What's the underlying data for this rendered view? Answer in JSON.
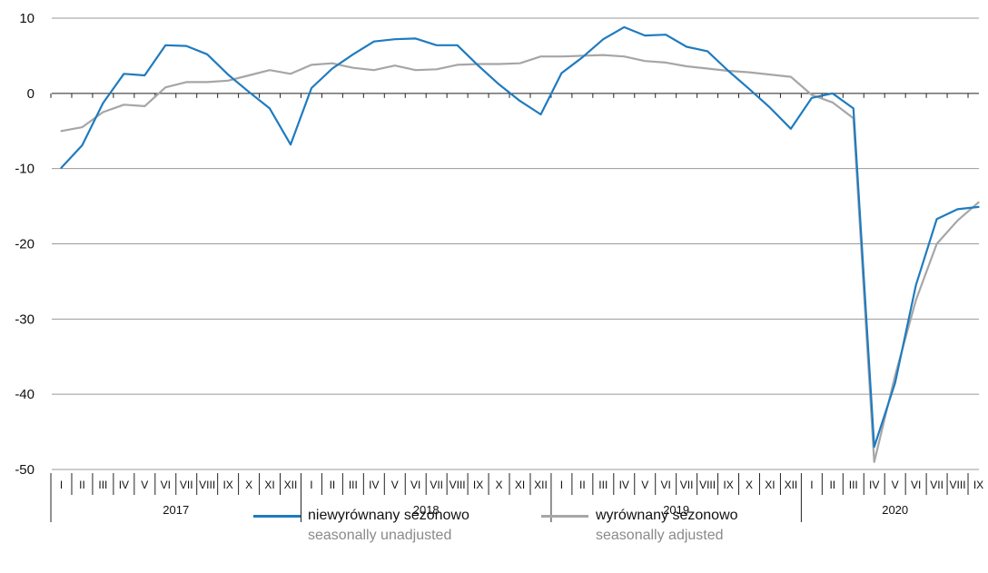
{
  "chart_data": {
    "type": "line",
    "ylim": [
      -50,
      10
    ],
    "yticks": [
      10,
      0,
      -10,
      -20,
      -30,
      -40,
      -50
    ],
    "grid": true,
    "months": [
      "I",
      "II",
      "III",
      "IV",
      "V",
      "VI",
      "VII",
      "VIII",
      "IX",
      "X",
      "XI",
      "XII"
    ],
    "years": [
      {
        "label": "2017",
        "months": 12
      },
      {
        "label": "2018",
        "months": 12
      },
      {
        "label": "2019",
        "months": 12
      },
      {
        "label": "2020",
        "months": 9
      }
    ],
    "series": [
      {
        "name": "niewyrównany sezonowo",
        "name_en": "seasonally unadjusted",
        "color": "#1f7bbf",
        "values": [
          -9.9,
          -6.9,
          -1.3,
          2.6,
          2.4,
          6.4,
          6.3,
          5.2,
          2.5,
          0.2,
          -2.0,
          -6.8,
          0.7,
          3.3,
          5.2,
          6.9,
          7.2,
          7.3,
          6.4,
          6.4,
          3.7,
          1.2,
          -1.0,
          -2.8,
          2.7,
          4.8,
          7.2,
          8.8,
          7.7,
          7.8,
          6.2,
          5.6,
          3.0,
          0.6,
          -1.9,
          -4.7,
          -0.6,
          0.0,
          -2.0,
          -47.0,
          -38.5,
          -25.5,
          -16.7,
          -15.4,
          -15.1
        ]
      },
      {
        "name": "wyrównany sezonowo",
        "name_en": "seasonally adjusted",
        "color": "#a6a6a6",
        "values": [
          -5.0,
          -4.5,
          -2.5,
          -1.5,
          -1.7,
          0.8,
          1.5,
          1.5,
          1.7,
          2.4,
          3.1,
          2.6,
          3.8,
          4.0,
          3.4,
          3.1,
          3.7,
          3.1,
          3.2,
          3.8,
          3.9,
          3.9,
          4.0,
          4.9,
          4.9,
          5.0,
          5.1,
          4.9,
          4.3,
          4.1,
          3.6,
          3.3,
          3.0,
          2.8,
          2.5,
          2.2,
          -0.2,
          -1.2,
          -3.3,
          -49.0,
          -37.5,
          -27.5,
          -20.0,
          -16.9,
          -14.5
        ]
      }
    ]
  }
}
